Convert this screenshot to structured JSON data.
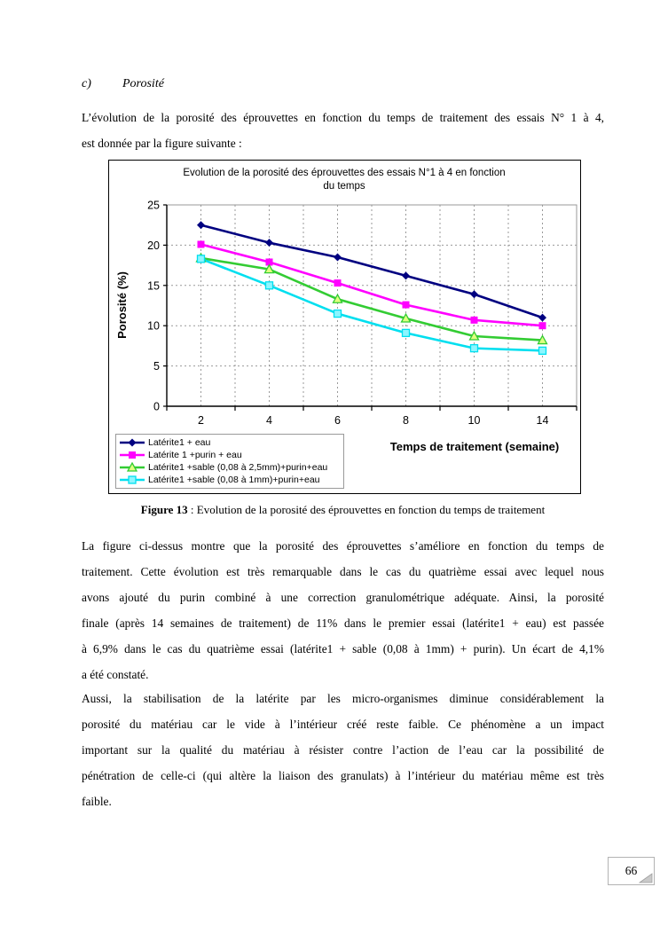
{
  "page": {
    "number": "66"
  },
  "heading": {
    "marker": "c)",
    "title": "Porosité"
  },
  "intro": {
    "lines": [
      "L’évolution  de la porosité des éprouvettes en fonction du temps de traitement des essais N° 1 à 4,",
      "est donnée par la figure suivante :"
    ]
  },
  "figure": {
    "caption_label": "Figure 13",
    "caption_sep": " : ",
    "caption_text": "Evolution de la porosité des éprouvettes en fonction du temps de traitement"
  },
  "chart_data": {
    "type": "line",
    "title": "Evolution de la porosité des éprouvettes des essais N°1 à 4 en fonction du temps",
    "title_lines": [
      "Evolution de la porosité des éprouvettes des essais N°1 à 4 en fonction",
      "du temps"
    ],
    "xlabel": "Temps de traitement (semaine)",
    "ylabel": "Porosité (%)",
    "categories": [
      "2",
      "4",
      "6",
      "8",
      "10",
      "14"
    ],
    "ylim": [
      0,
      25
    ],
    "yticks": [
      0,
      5,
      10,
      15,
      20,
      25
    ],
    "grid": "dashed gray, horizontal at yticks, vertical at half-category steps",
    "legend_position": "bottom-left",
    "series": [
      {
        "name": "Latérite1 + eau",
        "color": "#000080",
        "marker": "diamond",
        "values": [
          22.5,
          20.3,
          18.5,
          16.2,
          13.9,
          11.0
        ]
      },
      {
        "name": "Latérite 1 +purin + eau",
        "color": "#FF00FF",
        "marker": "square",
        "values": [
          20.1,
          17.9,
          15.3,
          12.6,
          10.7,
          10.0
        ]
      },
      {
        "name": "Latérite1 +sable (0,08 à 2,5mm)+purin+eau",
        "color": "#33CC33",
        "marker": "triangle",
        "values": [
          18.4,
          17.0,
          13.3,
          10.9,
          8.7,
          8.2
        ]
      },
      {
        "name": "Latérite1 +sable (0,08 à 1mm)+purin+eau",
        "color": "#00DFEF",
        "marker": "square-light",
        "values": [
          18.3,
          15.0,
          11.5,
          9.1,
          7.2,
          6.9
        ]
      }
    ]
  },
  "paragraphs": {
    "p1": {
      "lines": [
        "La figure ci-dessus montre que la porosité des éprouvettes s’améliore en fonction du temps de",
        "traitement. Cette évolution est très remarquable dans le cas du quatrième essai avec lequel nous",
        "avons ajouté du purin combiné à une correction granulométrique adéquate. Ainsi, la porosité",
        "finale (après 14 semaines de traitement) de 11% dans le premier essai (latérite1 + eau) est passée",
        "à 6,9% dans le cas du quatrième essai (latérite1 + sable (0,08 à 1mm) + purin). Un écart de 4,1%",
        "a été constaté."
      ]
    },
    "p2": {
      "lines": [
        "Aussi, la stabilisation de la latérite par les micro-organismes diminue considérablement la",
        "porosité du matériau car le vide à l’intérieur créé reste faible. Ce phénomène a un impact",
        "important sur la qualité du matériau à résister contre l’action de l’eau car la possibilité de",
        "pénétration de celle-ci (qui altère la liaison des granulats) à l’intérieur du matériau même est très",
        "faible."
      ]
    }
  }
}
